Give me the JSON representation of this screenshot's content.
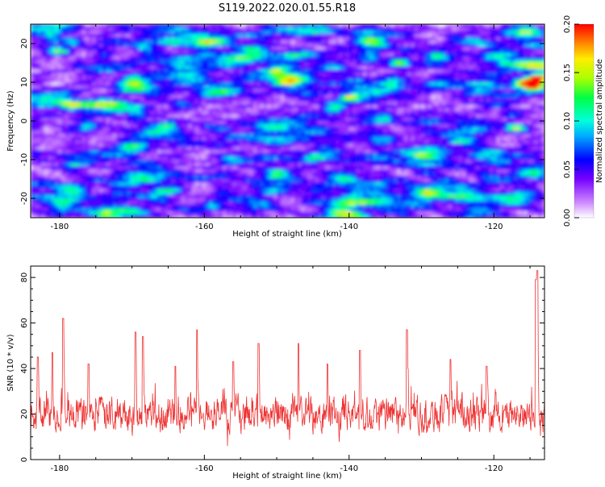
{
  "title": "S119.2022.020.01.55.R18",
  "chart_data": [
    {
      "type": "heatmap",
      "xlabel": "Height of straight line (km)",
      "ylabel": "Frequency (Hz)",
      "xlim": [
        -184,
        -113
      ],
      "ylim": [
        -25,
        25
      ],
      "xticks": [
        -180,
        -160,
        -140,
        -120
      ],
      "yticks": [
        -20,
        -10,
        0,
        10,
        20
      ],
      "colorbar": {
        "label": "Normalized spectral amplitude",
        "range": [
          0,
          0.2
        ],
        "ticks": [
          "0.00",
          "0.05",
          "0.10",
          "0.15",
          "0.20"
        ]
      },
      "notable_peaks": [
        {
          "x": -114,
          "y": 11,
          "value": 0.19
        },
        {
          "x": -114.5,
          "y": 9,
          "value": 0.17
        },
        {
          "x": -116,
          "y": 10,
          "value": 0.14
        },
        {
          "x": -133,
          "y": 15,
          "value": 0.13
        },
        {
          "x": -140,
          "y": 6,
          "value": 0.12
        },
        {
          "x": -117,
          "y": -2,
          "value": 0.12
        },
        {
          "x": -180,
          "y": 18,
          "value": 0.1
        },
        {
          "x": -178.5,
          "y": 4,
          "value": 0.1
        },
        {
          "x": -150,
          "y": 13,
          "value": 0.09
        },
        {
          "x": -165,
          "y": -1,
          "value": 0.08
        },
        {
          "x": -128,
          "y": 17,
          "value": 0.08
        },
        {
          "x": -160,
          "y": 20,
          "value": 0.07
        },
        {
          "x": -145,
          "y": -10,
          "value": 0.07
        },
        {
          "x": -135,
          "y": 1,
          "value": 0.07
        },
        {
          "x": -170,
          "y": 11,
          "value": 0.06
        }
      ]
    },
    {
      "type": "line",
      "xlabel": "Height of straight line (km)",
      "ylabel": "SNR (10 * v/v)",
      "xlim": [
        -184,
        -113
      ],
      "ylim": [
        0,
        85
      ],
      "xticks": [
        -180,
        -160,
        -140,
        -120
      ],
      "yticks": [
        0,
        20,
        40,
        60,
        80
      ],
      "color": "#ee3333",
      "baseline_mean": 20,
      "noise_range": [
        5,
        45
      ],
      "peaks": [
        {
          "x": -179.5,
          "y": 62
        },
        {
          "x": -169.5,
          "y": 56
        },
        {
          "x": -168.5,
          "y": 54
        },
        {
          "x": -161,
          "y": 57
        },
        {
          "x": -152.5,
          "y": 51
        },
        {
          "x": -147,
          "y": 51
        },
        {
          "x": -138.5,
          "y": 48
        },
        {
          "x": -132,
          "y": 57
        },
        {
          "x": -114.2,
          "y": 79
        },
        {
          "x": -114.0,
          "y": 83
        },
        {
          "x": -183,
          "y": 45
        },
        {
          "x": -181,
          "y": 47
        },
        {
          "x": -176,
          "y": 42
        },
        {
          "x": -164,
          "y": 41
        },
        {
          "x": -156,
          "y": 43
        },
        {
          "x": -143,
          "y": 42
        },
        {
          "x": -126,
          "y": 44
        },
        {
          "x": -121,
          "y": 41
        }
      ]
    }
  ]
}
